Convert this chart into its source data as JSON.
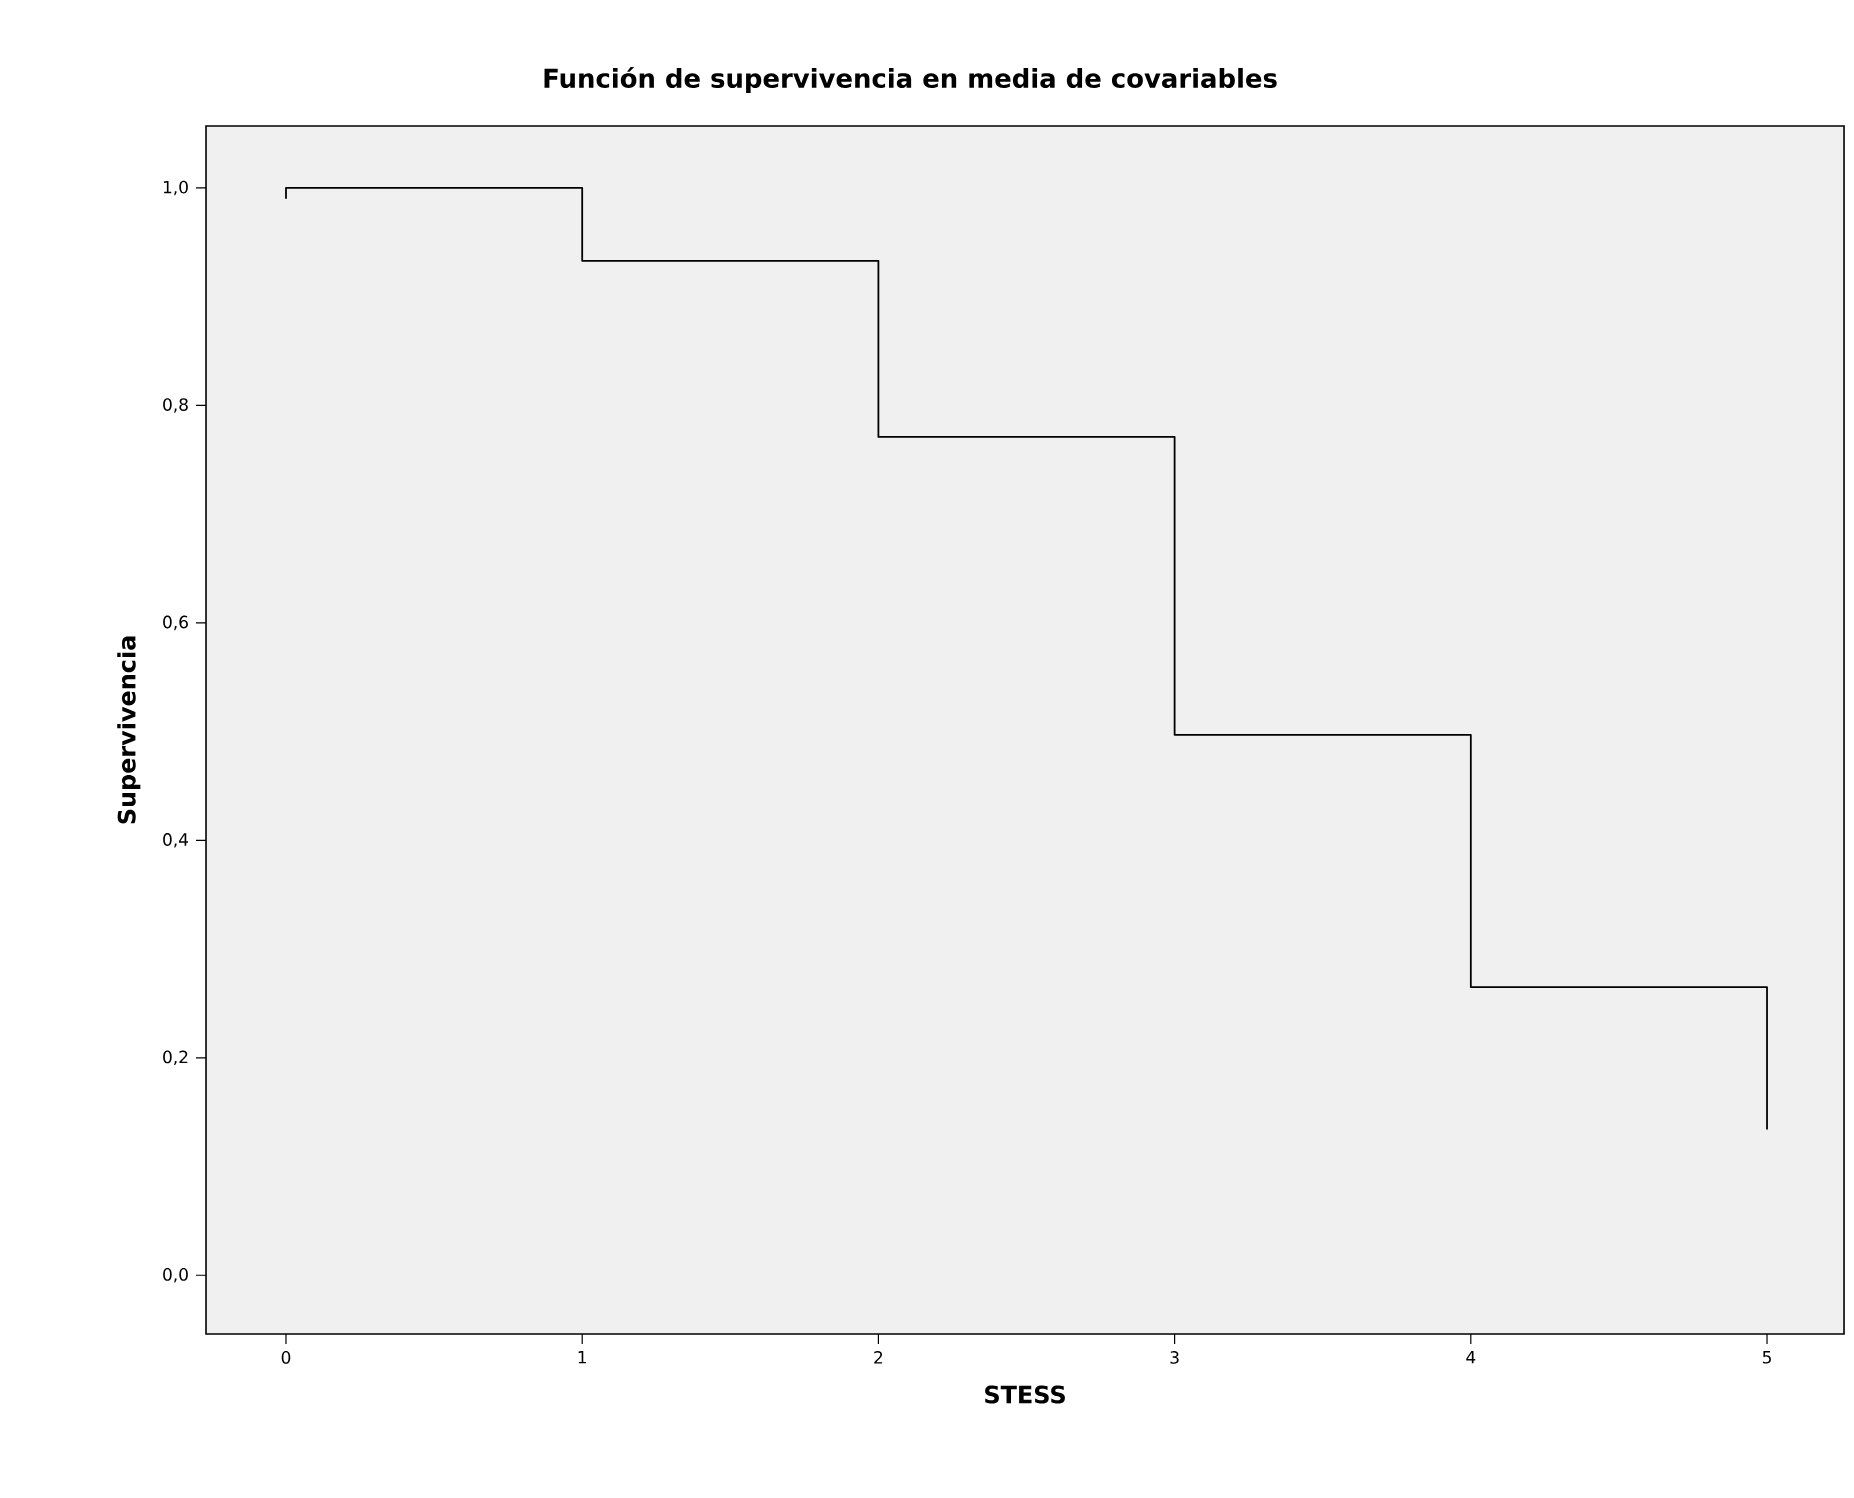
{
  "chart_data": {
    "type": "step",
    "title": "Función de supervivencia en media de covariables",
    "xlabel": "STESS",
    "ylabel": "Supervivencia",
    "x": [
      0,
      0,
      1,
      2,
      3,
      4,
      5
    ],
    "series": [
      {
        "color": "#000000",
        "values": [
          0.99,
          1.0,
          0.933,
          0.771,
          0.497,
          0.265,
          0.134
        ]
      }
    ],
    "xlim": [
      -0.27,
      5.26
    ],
    "ylim": [
      -0.054,
      1.057
    ],
    "xticks": [
      0,
      1,
      2,
      3,
      4,
      5
    ],
    "yticks": [
      {
        "value": 0.0,
        "label": "0,0"
      },
      {
        "value": 0.2,
        "label": "0,2"
      },
      {
        "value": 0.4,
        "label": "0,4"
      },
      {
        "value": 0.6,
        "label": "0,6"
      },
      {
        "value": 0.8,
        "label": "0,8"
      },
      {
        "value": 1.0,
        "label": "1,0"
      }
    ],
    "line_style": "solid"
  }
}
